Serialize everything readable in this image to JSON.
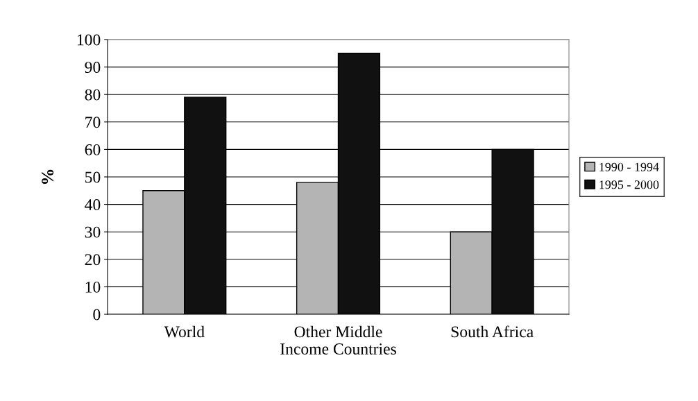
{
  "chart_data": {
    "type": "bar",
    "ylabel": "%",
    "categories": [
      "World",
      "Other Middle\nIncome Countries",
      "South Africa"
    ],
    "series": [
      {
        "name": "1990 - 1994",
        "color": "#b4b4b4",
        "values": [
          45,
          48,
          30
        ]
      },
      {
        "name": "1995 - 2000",
        "color": "#111111",
        "values": [
          79,
          95,
          60
        ]
      }
    ],
    "ylim": [
      0,
      100
    ],
    "yticks": [
      0,
      10,
      20,
      30,
      40,
      50,
      60,
      70,
      80,
      90,
      100
    ],
    "grid": "y",
    "legend": "right"
  }
}
